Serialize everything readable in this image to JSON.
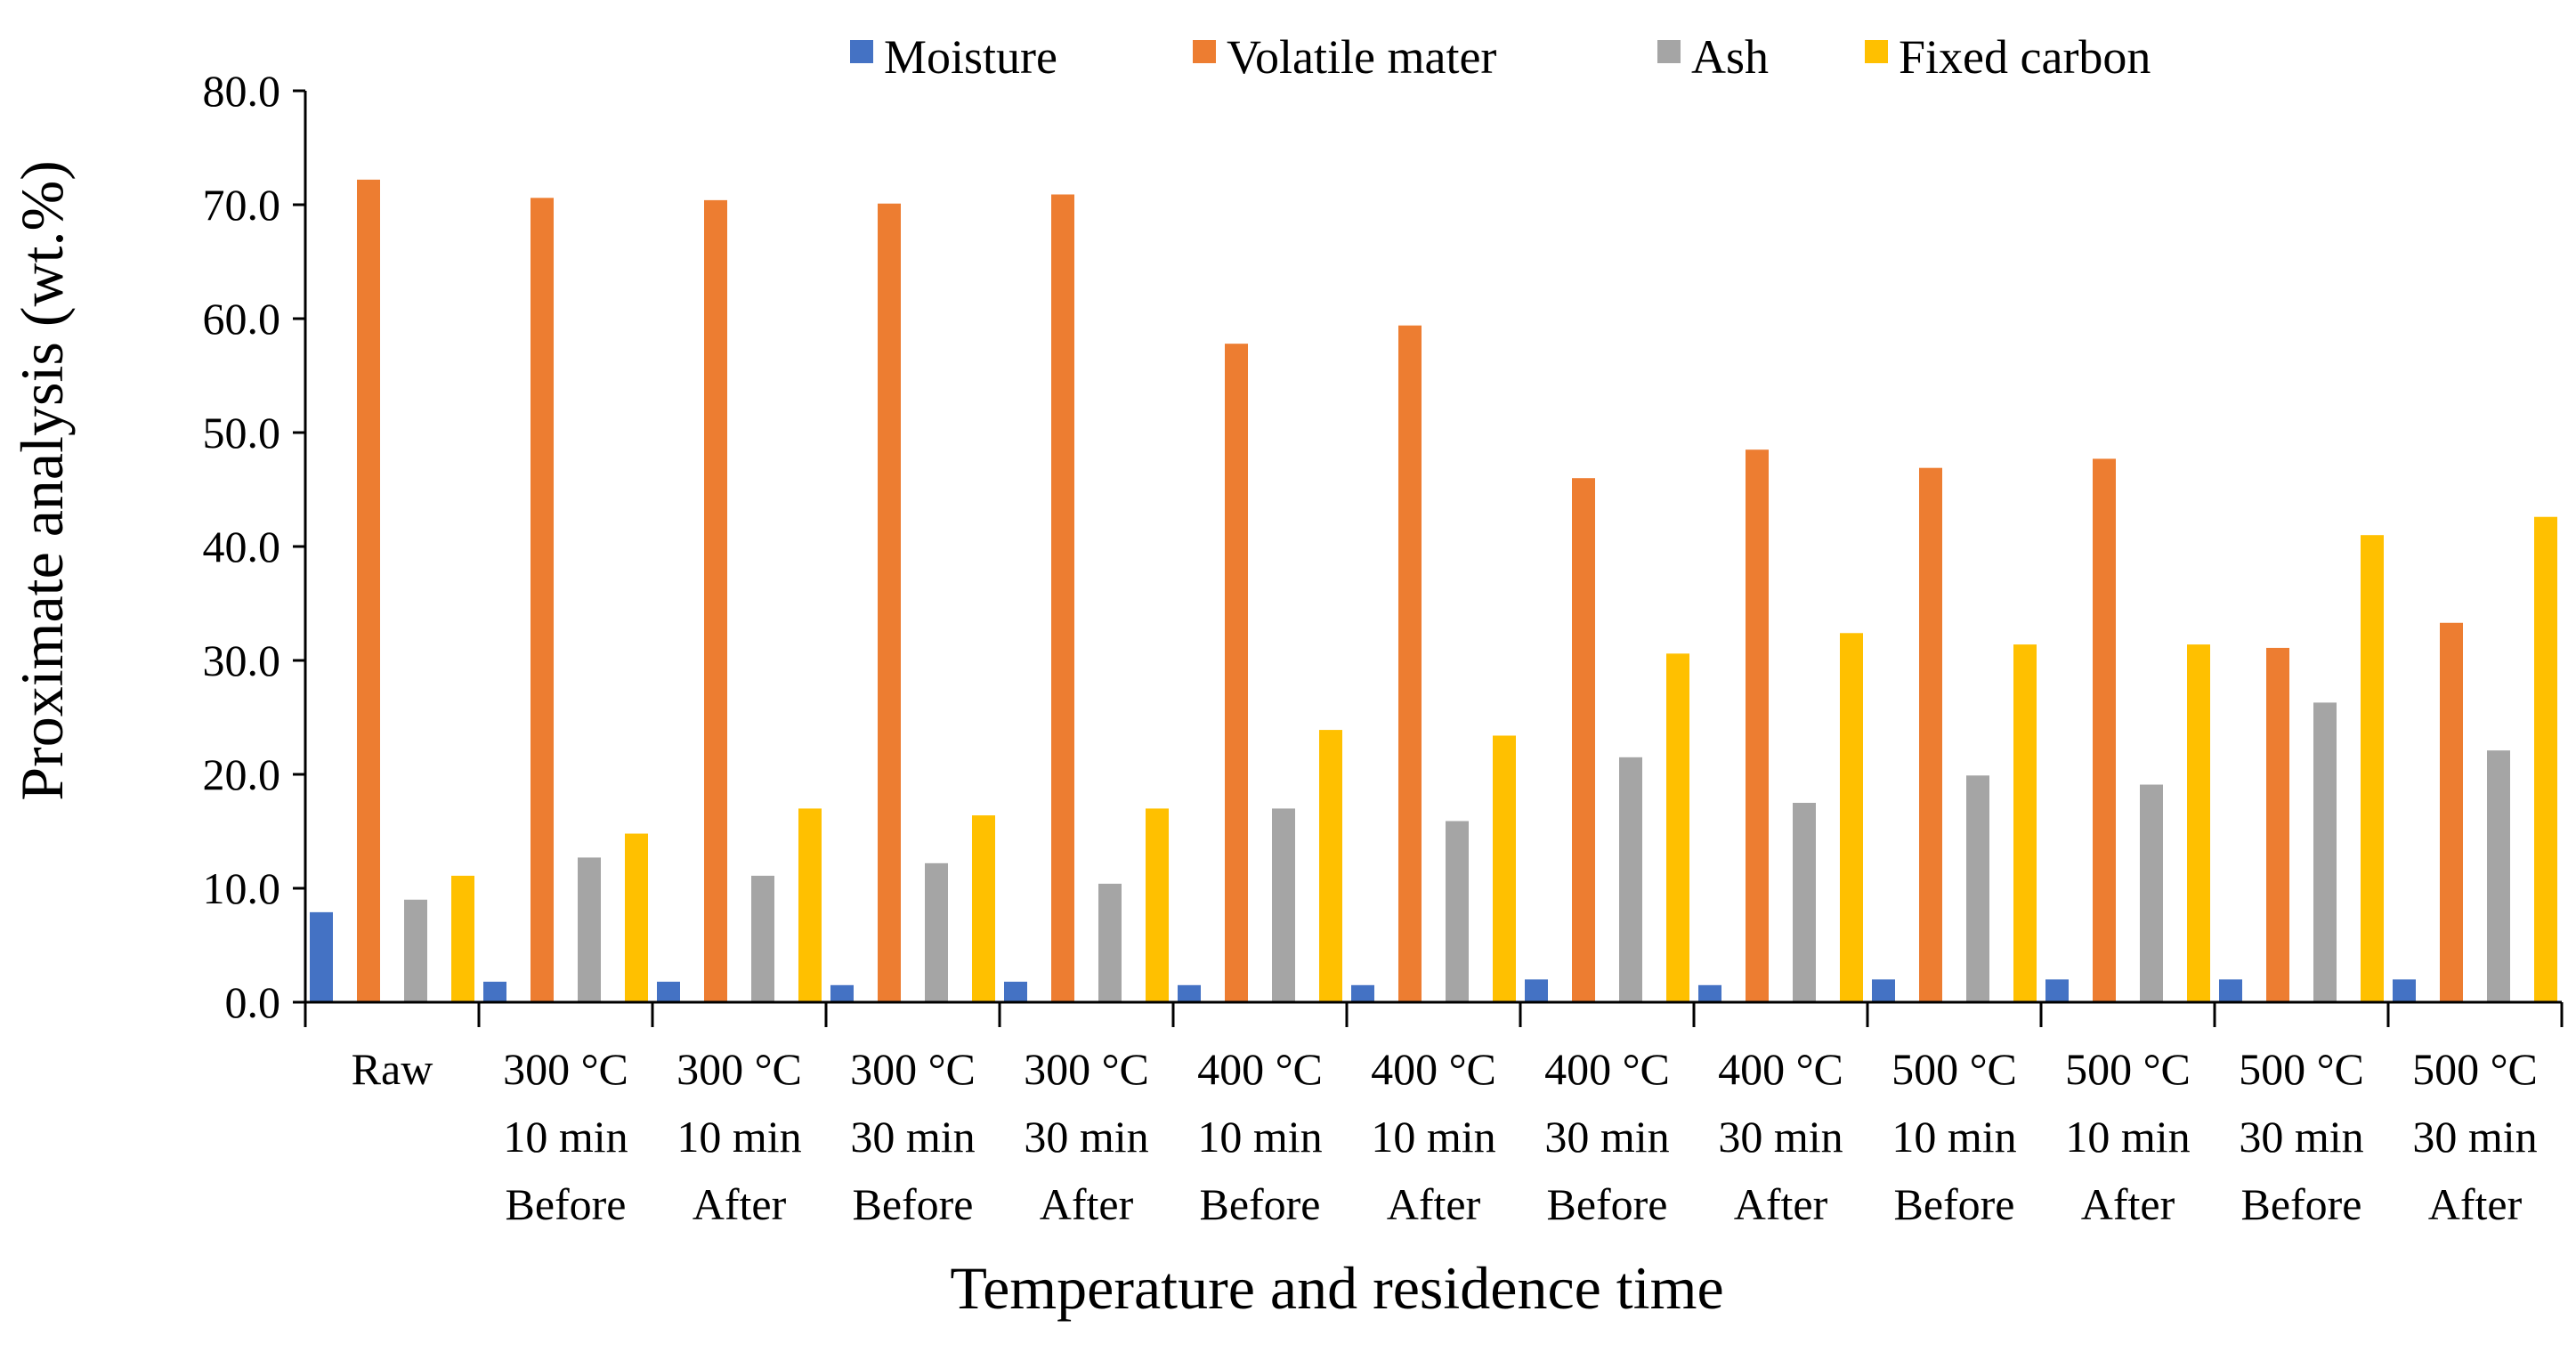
{
  "chart_data": {
    "type": "bar",
    "title": "",
    "xlabel": "Temperature and residence time",
    "ylabel": "Proximate analysis (wt.%)",
    "ylim": [
      0,
      80
    ],
    "yticks": [
      "0.0",
      "10.0",
      "20.0",
      "30.0",
      "40.0",
      "50.0",
      "60.0",
      "70.0",
      "80.0"
    ],
    "grid": false,
    "legend_position": "top",
    "categories": [
      [
        "Raw"
      ],
      [
        "300 °C",
        "10 min",
        "Before"
      ],
      [
        "300 °C",
        "10 min",
        "After"
      ],
      [
        "300 °C",
        "30 min",
        "Before"
      ],
      [
        "300 °C",
        "30 min",
        "After"
      ],
      [
        "400 °C",
        "10 min",
        "Before"
      ],
      [
        "400 °C",
        "10 min",
        "After"
      ],
      [
        "400 °C",
        "30 min",
        "Before"
      ],
      [
        "400 °C",
        "30 min",
        "After"
      ],
      [
        "500 °C",
        "10 min",
        "Before"
      ],
      [
        "500 °C",
        "10 min",
        "After"
      ],
      [
        "500 °C",
        "30 min",
        "Before"
      ],
      [
        "500 °C",
        "30 min",
        "After"
      ]
    ],
    "series": [
      {
        "name": "Moisture",
        "color": "#4472C4",
        "values": [
          7.9,
          1.8,
          1.8,
          1.5,
          1.8,
          1.5,
          1.5,
          2.0,
          1.5,
          2.0,
          2.0,
          2.0,
          2.0
        ]
      },
      {
        "name": "Volatile mater",
        "color": "#ED7D31",
        "values": [
          72.2,
          70.6,
          70.4,
          70.1,
          70.9,
          57.8,
          59.4,
          46.0,
          48.5,
          46.9,
          47.7,
          31.1,
          33.3
        ]
      },
      {
        "name": "Ash",
        "color": "#A5A5A5",
        "values": [
          9.0,
          12.7,
          11.1,
          12.2,
          10.4,
          17.0,
          15.9,
          21.5,
          17.5,
          19.9,
          19.1,
          26.3,
          22.1
        ]
      },
      {
        "name": "Fixed carbon",
        "color": "#FFC000",
        "values": [
          11.1,
          14.8,
          17.0,
          16.4,
          17.0,
          23.9,
          23.4,
          30.6,
          32.4,
          31.4,
          31.4,
          41.0,
          42.6
        ]
      }
    ]
  }
}
